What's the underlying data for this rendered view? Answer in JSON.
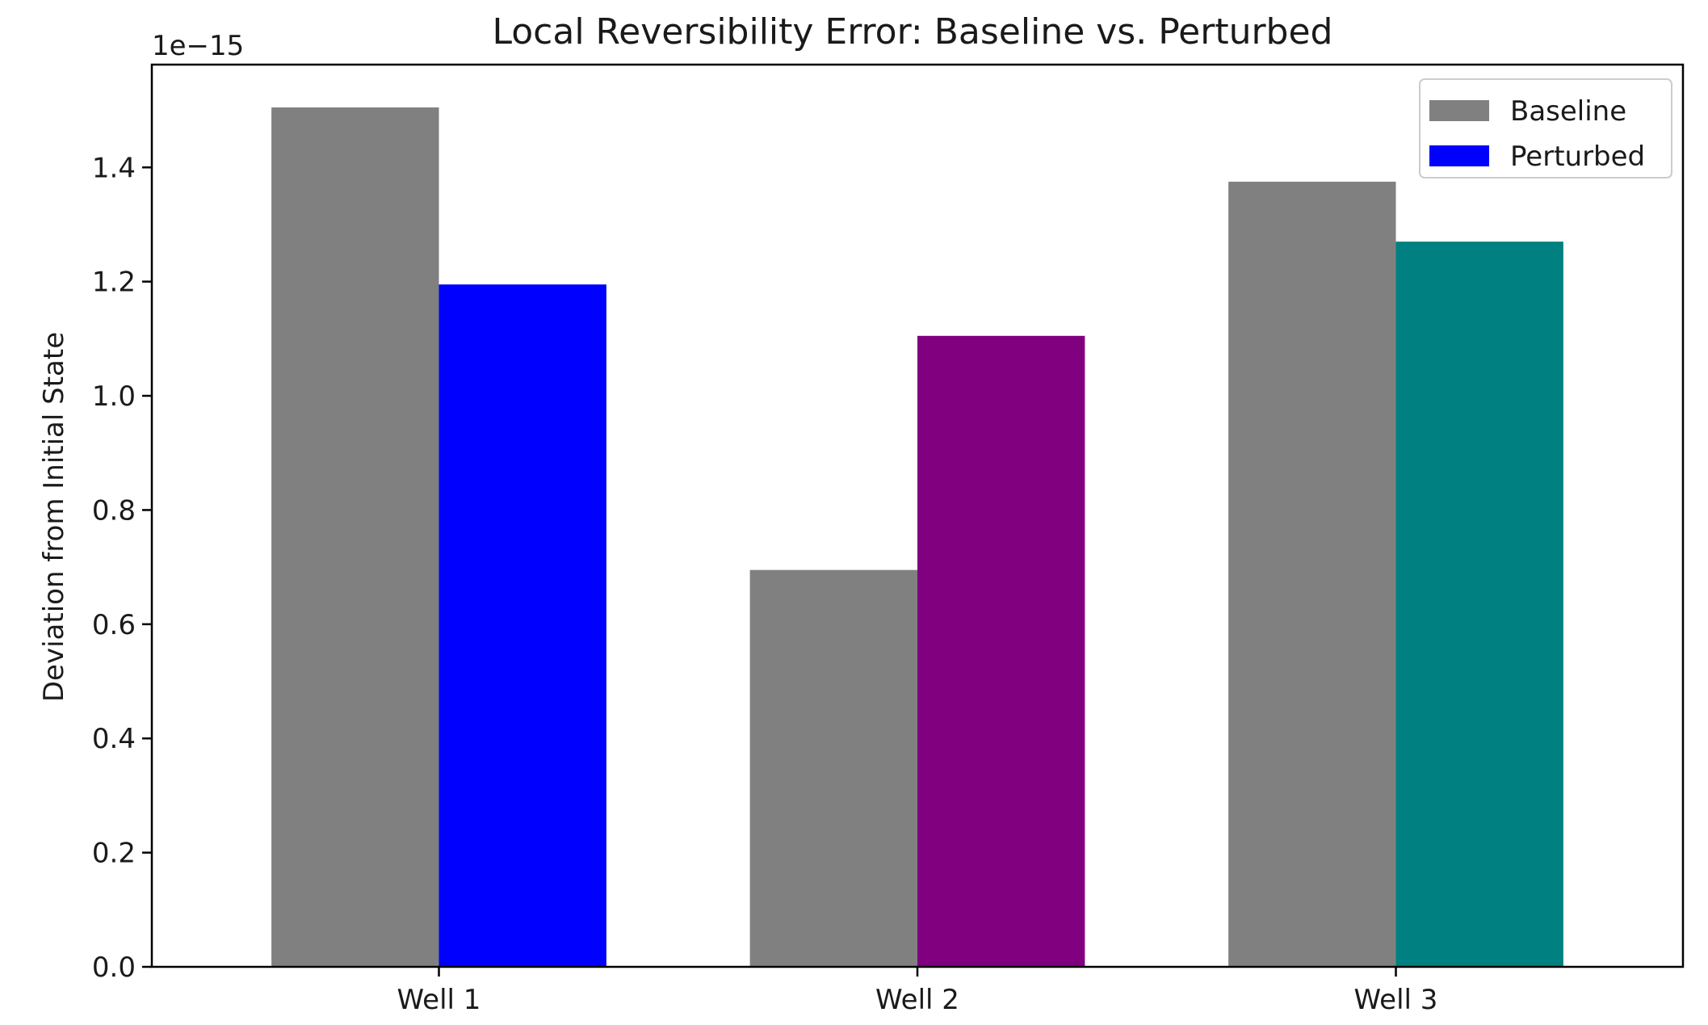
{
  "chart_data": {
    "type": "bar",
    "title": "Local Reversibility Error: Baseline vs. Perturbed",
    "xlabel": "",
    "ylabel": "Deviation from Initial State",
    "offset_label": "1e−15",
    "categories": [
      "Well 1",
      "Well 2",
      "Well 3"
    ],
    "series": [
      {
        "name": "Baseline",
        "values": [
          1.505,
          0.695,
          1.375
        ],
        "colors": [
          "#808080",
          "#808080",
          "#808080"
        ]
      },
      {
        "name": "Perturbed",
        "values": [
          1.195,
          1.105,
          1.27
        ],
        "colors": [
          "#0000ff",
          "#800080",
          "#008080"
        ]
      }
    ],
    "value_scale": 1e-15,
    "ylim": [
      0,
      1.58
    ],
    "yticks": [
      0.0,
      0.2,
      0.4,
      0.6,
      0.8,
      1.0,
      1.2,
      1.4
    ],
    "ytick_labels": [
      "0.0",
      "0.2",
      "0.4",
      "0.6",
      "0.8",
      "1.0",
      "1.2",
      "1.4"
    ],
    "grid": false,
    "legend": {
      "position": "top-right",
      "entries": [
        {
          "label": "Baseline",
          "color": "#808080"
        },
        {
          "label": "Perturbed",
          "color": "#0000ff"
        }
      ]
    }
  }
}
